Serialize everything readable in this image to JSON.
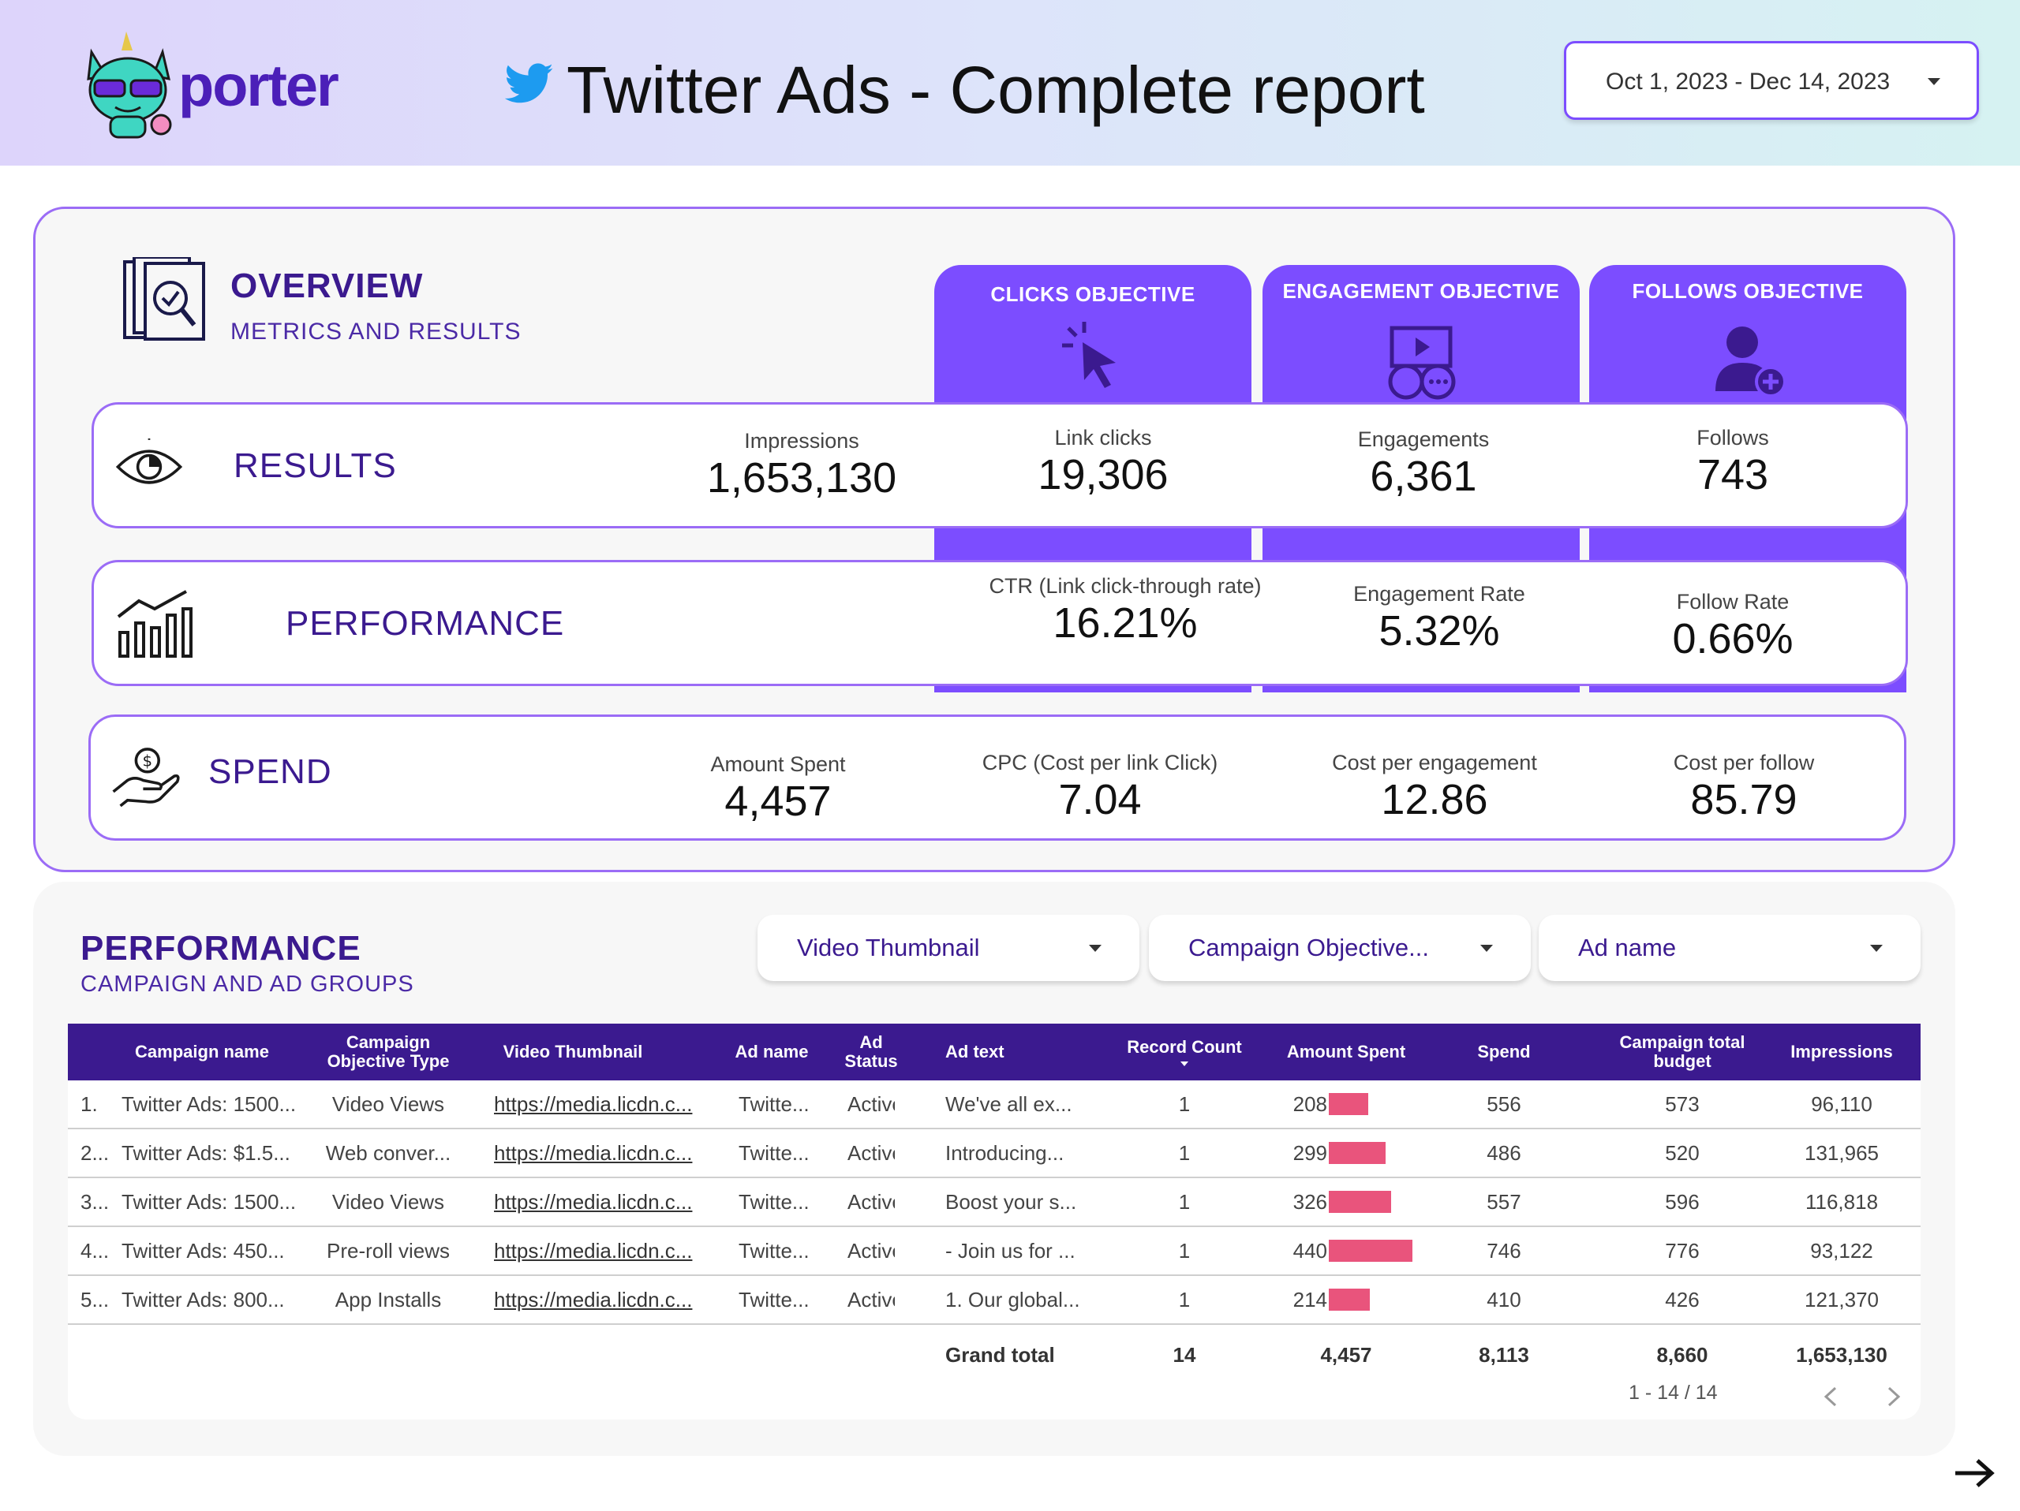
{
  "header": {
    "logo_text": "porter",
    "title": "Twitter Ads - Complete report",
    "date_range": "Oct 1, 2023 - Dec 14, 2023"
  },
  "overview": {
    "title": "OVERVIEW",
    "subtitle": "METRICS AND RESULTS",
    "objectives": [
      {
        "label": "CLICKS OBJECTIVE",
        "icon": "cursor-click-icon"
      },
      {
        "label": "ENGAGEMENT OBJECTIVE",
        "icon": "video-chat-icon"
      },
      {
        "label": "FOLLOWS OBJECTIVE",
        "icon": "user-add-icon"
      }
    ],
    "results": {
      "label": "RESULTS",
      "impressions": {
        "label": "Impressions",
        "value": "1,653,130"
      },
      "link_clicks": {
        "label": "Link clicks",
        "value": "19,306"
      },
      "engagements": {
        "label": "Engagements",
        "value": "6,361"
      },
      "follows": {
        "label": "Follows",
        "value": "743"
      }
    },
    "performance": {
      "label": "PERFORMANCE",
      "ctr": {
        "label": "CTR (Link click-through rate)",
        "value": "16.21%"
      },
      "engagement_rate": {
        "label": "Engagement Rate",
        "value": "5.32%"
      },
      "follow_rate": {
        "label": "Follow Rate",
        "value": "0.66%"
      }
    },
    "spend": {
      "label": "SPEND",
      "amount_spent": {
        "label": "Amount Spent",
        "value": "4,457"
      },
      "cpc": {
        "label": "CPC (Cost per link Click)",
        "value": "7.04"
      },
      "cost_per_engagement": {
        "label": "Cost per engagement",
        "value": "12.86"
      },
      "cost_per_follow": {
        "label": "Cost per follow",
        "value": "85.79"
      }
    }
  },
  "performance_section": {
    "title": "PERFORMANCE",
    "subtitle": "CAMPAIGN AND AD GROUPS",
    "filters": [
      "Video Thumbnail",
      "Campaign Objective...",
      "Ad name"
    ],
    "columns": [
      "Campaign name",
      "Campaign Objective Type",
      "Video Thumbnail",
      "Ad name",
      "Ad Status",
      "Ad text",
      "Record Count",
      "Amount Spent",
      "Spend",
      "Campaign total budget",
      "Impressions"
    ],
    "rows": [
      {
        "idx": "1.",
        "campaign": "Twitter Ads: 1500...",
        "objective": "Video Views",
        "thumb": "https://media.licdn.c...",
        "ad_name": "Twitte...",
        "status": "Active",
        "ad_text": "We've all ex...",
        "count": "1",
        "amount": 208,
        "amount_label": "208",
        "spend": "556",
        "budget": "573",
        "impressions": "96,110"
      },
      {
        "idx": "2...",
        "campaign": "Twitter Ads: $1.5...",
        "objective": "Web conver...",
        "thumb": "https://media.licdn.c...",
        "ad_name": "Twitte...",
        "status": "Active",
        "ad_text": "Introducing...",
        "count": "1",
        "amount": 299,
        "amount_label": "299",
        "spend": "486",
        "budget": "520",
        "impressions": "131,965"
      },
      {
        "idx": "3...",
        "campaign": "Twitter Ads: 1500...",
        "objective": "Video Views",
        "thumb": "https://media.licdn.c...",
        "ad_name": "Twitte...",
        "status": "Active",
        "ad_text": "Boost your s...",
        "count": "1",
        "amount": 326,
        "amount_label": "326",
        "spend": "557",
        "budget": "596",
        "impressions": "116,818"
      },
      {
        "idx": "4...",
        "campaign": "Twitter Ads: 450...",
        "objective": "Pre-roll views",
        "thumb": "https://media.licdn.c...",
        "ad_name": "Twitte...",
        "status": "Active",
        "ad_text": "- Join us for ...",
        "count": "1",
        "amount": 440,
        "amount_label": "440",
        "spend": "746",
        "budget": "776",
        "impressions": "93,122"
      },
      {
        "idx": "5...",
        "campaign": "Twitter Ads: 800...",
        "objective": "App Installs",
        "thumb": "https://media.licdn.c...",
        "ad_name": "Twitte...",
        "status": "Active",
        "ad_text": "1. Our global...",
        "count": "1",
        "amount": 214,
        "amount_label": "214",
        "spend": "410",
        "budget": "426",
        "impressions": "121,370"
      }
    ],
    "grand_total": {
      "label": "Grand total",
      "count": "14",
      "amount": "4,457",
      "spend": "8,113",
      "budget": "8,660",
      "impressions": "1,653,130"
    },
    "pagination": "1 - 14 / 14"
  },
  "colors": {
    "accent": "#7c4dff",
    "header_dark": "#3b1a8f",
    "bar": "#e9547c"
  }
}
